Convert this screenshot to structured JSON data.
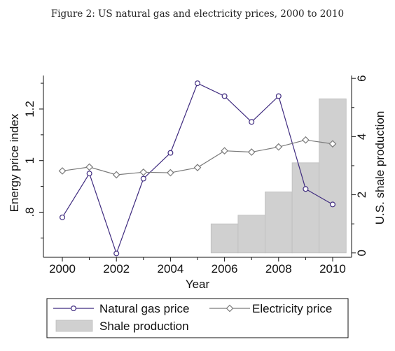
{
  "caption": "Figure 2: US natural gas and electricity prices, 2000 to 2010",
  "chart_data": {
    "type": "line",
    "x": [
      2000,
      2001,
      2002,
      2003,
      2004,
      2005,
      2006,
      2007,
      2008,
      2009,
      2010
    ],
    "series": [
      {
        "name": "Natural gas price",
        "axis": "left",
        "marker": "circle",
        "color": "#3f2b7f",
        "values": [
          0.78,
          0.95,
          0.64,
          0.93,
          1.03,
          1.3,
          1.25,
          1.15,
          1.25,
          0.89,
          0.83
        ]
      },
      {
        "name": "Electricity price",
        "axis": "left",
        "marker": "diamond",
        "color": "#7a7a7a",
        "values": [
          0.96,
          0.975,
          0.945,
          0.955,
          0.953,
          0.973,
          1.038,
          1.033,
          1.053,
          1.08,
          1.065
        ]
      }
    ],
    "bars": {
      "name": "Shale production",
      "axis": "right",
      "color": "#d0d0d0",
      "x": [
        2006,
        2007,
        2008,
        2009,
        2010
      ],
      "values": [
        1.0,
        1.3,
        2.1,
        3.1,
        5.3
      ]
    },
    "xlabel": "Year",
    "ylabel_left": "Energy price index",
    "ylabel_right": "U.S. shale production",
    "xticks": [
      2000,
      2002,
      2004,
      2006,
      2008,
      2010
    ],
    "xtick_labels": [
      "2000",
      "2002",
      "2004",
      "2006",
      "2008",
      "2010"
    ],
    "yticks_left": [
      0.8,
      1.0,
      1.2
    ],
    "ytick_labels_left": [
      ".8",
      "1",
      "1.2"
    ],
    "yticks_right": [
      0,
      2,
      4,
      6
    ],
    "ytick_labels_right": [
      "0",
      "2",
      "4",
      "6"
    ],
    "xlim": [
      1999.3,
      2010.7
    ],
    "ylim_left": [
      0.625,
      1.33
    ],
    "ylim_right": [
      -0.15,
      6.1
    ],
    "grid": false,
    "legend_position": "bottom"
  }
}
